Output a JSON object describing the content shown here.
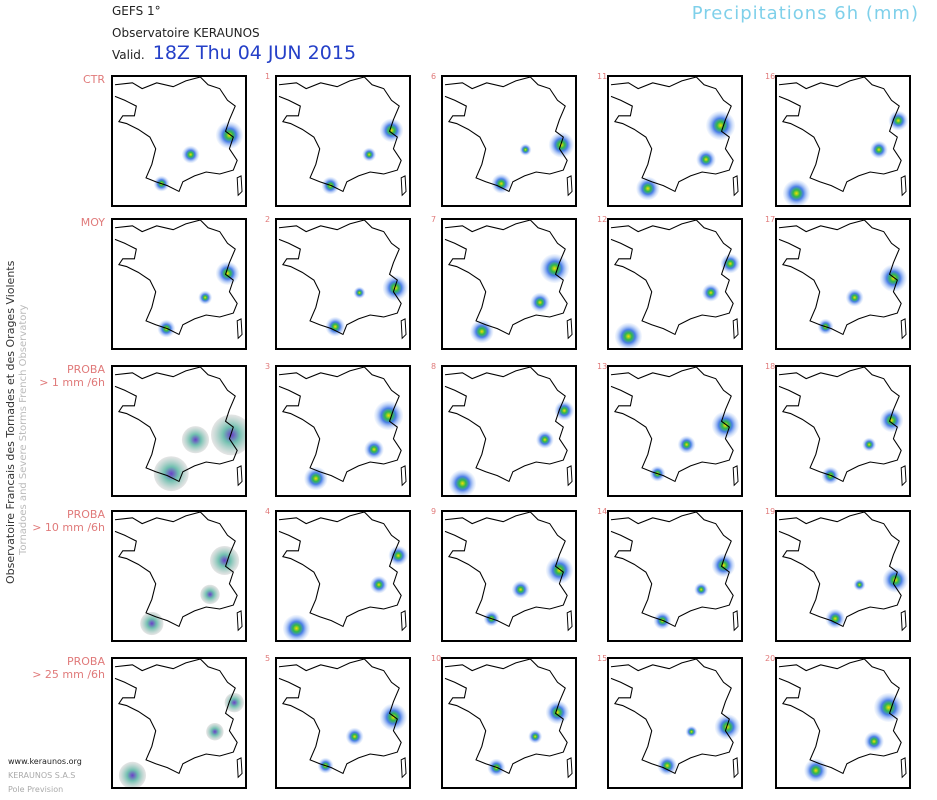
{
  "header": {
    "model": "GEFS 1°",
    "observatory": "Observatoire KERAUNOS",
    "valid_label": "Valid.",
    "valid_date": "18Z Thu 04 JUN 2015",
    "product": "Precipitations 6h (mm)"
  },
  "side": {
    "line1": "Observatoire Francais des Tornades et des Orages Violents",
    "line2": "Tornadoes and Severe Storms French Observatory"
  },
  "rows": [
    {
      "label": "CTR",
      "sub": "",
      "panels": [
        "1",
        "6",
        "11",
        "16"
      ]
    },
    {
      "label": "MOY",
      "sub": "",
      "panels": [
        "2",
        "7",
        "12",
        "17"
      ]
    },
    {
      "label": "PROBA",
      "sub": "> 1 mm /6h",
      "panels": [
        "3",
        "8",
        "13",
        "18"
      ]
    },
    {
      "label": "PROBA",
      "sub": "> 10 mm /6h",
      "panels": [
        "4",
        "9",
        "14",
        "19"
      ]
    },
    {
      "label": "PROBA",
      "sub": "> 25 mm /6h",
      "panels": [
        "5",
        "10",
        "15",
        "20"
      ]
    }
  ],
  "footer": {
    "site": "www.keraunos.org",
    "company": "KERAUNOS S.A.S",
    "dept": "Pole Prevision"
  },
  "colors": {
    "accent": "#2540c8",
    "label": "#e07a7a",
    "title": "#7fd0ea",
    "precip_low": "#4a7ee8",
    "precip_mid": "#2fb84a",
    "precip_high": "#f5e000"
  }
}
